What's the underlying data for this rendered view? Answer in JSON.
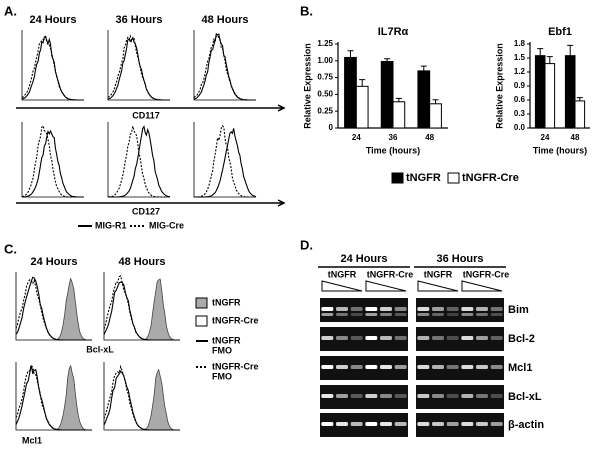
{
  "panels": {
    "a": {
      "label": "A.",
      "columns": [
        "24 Hours",
        "36 Hours",
        "48 Hours"
      ],
      "row_markers": [
        "CD117",
        "CD127"
      ],
      "legend": [
        "MIG-R1",
        "MIG-Cre"
      ]
    },
    "b": {
      "label": "B."
    },
    "c": {
      "label": "C.",
      "columns": [
        "24 Hours",
        "48 Hours"
      ],
      "row_markers": [
        "Bcl-xL",
        "Mcl1"
      ],
      "legend": [
        [
          "tNGFR"
        ],
        [
          "tNGFR-Cre"
        ],
        [
          "tNGFR",
          "FMO"
        ],
        [
          "tNGFR-Cre",
          "FMO"
        ]
      ]
    },
    "d": {
      "label": "D.",
      "timepoints": [
        "24 Hours",
        "36 Hours"
      ],
      "groups": [
        [
          "tNGFR",
          "tNGFR-Cre"
        ],
        [
          "tNGFR",
          "tNGFR-Cre"
        ]
      ],
      "genes": [
        "Bim",
        "Bcl-2",
        "Mcl1",
        "Bcl-xL",
        "β-actin"
      ]
    }
  },
  "chart_data": [
    {
      "type": "bar",
      "title": "IL7Rα",
      "x_label": "Time (hours)",
      "y_label": "Relative Expression",
      "categories": [
        "24",
        "36",
        "48"
      ],
      "series": [
        {
          "name": "tNGFR",
          "color": "#000000",
          "values": [
            1.05,
            0.99,
            0.85
          ],
          "errors": [
            0.1,
            0.04,
            0.07
          ]
        },
        {
          "name": "tNGFR-Cre",
          "color": "#ffffff",
          "values": [
            0.62,
            0.39,
            0.36
          ],
          "errors": [
            0.1,
            0.05,
            0.06
          ]
        }
      ],
      "ylim": [
        0,
        1.25
      ],
      "yticks": [
        0,
        0.25,
        {
          "value": 0.5,
          "label": "0.50"
        },
        0.75,
        {
          "value": 1,
          "label": "1.00"
        },
        1.25
      ]
    },
    {
      "type": "bar",
      "title": "Ebf1",
      "x_label": "Time (hours)",
      "y_label": "Relative Expression",
      "categories": [
        "24",
        "48"
      ],
      "series": [
        {
          "color": "#000000",
          "values": [
            1.55,
            1.55
          ],
          "errors": [
            0.15,
            0.22
          ]
        },
        {
          "color": "#ffffff",
          "values": [
            1.38,
            0.58
          ],
          "errors": [
            0.15,
            0.07
          ]
        }
      ],
      "ylim": [
        0,
        1.8
      ],
      "yticks": [
        {
          "value": 0,
          "label": "0.0"
        },
        0.3,
        0.6,
        0.9,
        1.2,
        1.5,
        1.8
      ]
    }
  ]
}
